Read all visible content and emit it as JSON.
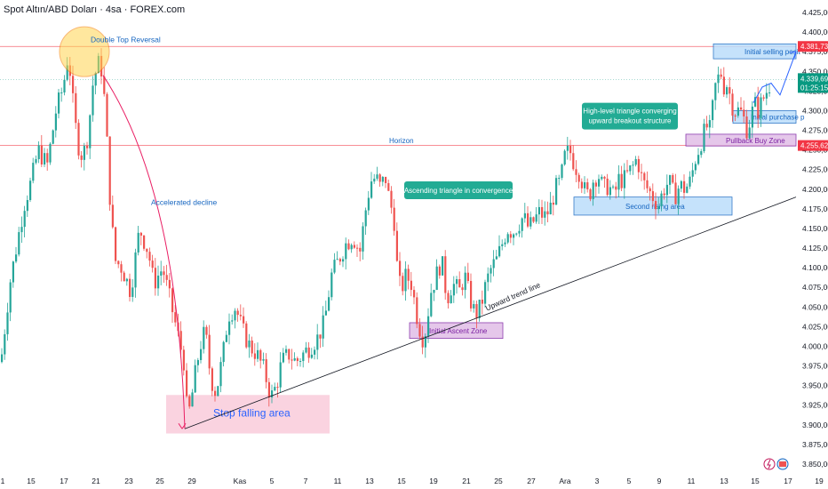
{
  "header": {
    "title": "Spot Altın/ABD Doları · 4sa · FOREX.com"
  },
  "colors": {
    "up": "#26a69a",
    "down": "#ef5350",
    "wick": "#131722",
    "resistance": "#f23645",
    "trend": "#131722",
    "blue_arrow": "#2962ff",
    "label_bg": "#f23645",
    "last_bg": "#089981",
    "callout": "#22ab94"
  },
  "chart_data": {
    "type": "candlestick",
    "title": "Spot Altın/ABD Doları · 4sa · FOREX.com",
    "y_range": [
      3850,
      4425
    ],
    "y_ticks": [
      "4.425,00",
      "4.400,00",
      "4.375,00",
      "4.350,00",
      "4.325,00",
      "4.300,00",
      "4.275,00",
      "4.250,00",
      "4.225,00",
      "4.200,00",
      "4.175,00",
      "4.150,00",
      "4.125,00",
      "4.100,00",
      "4.075,00",
      "4.050,00",
      "4.025,00",
      "4.000,00",
      "3.975,00",
      "3.950,00",
      "3.925,00",
      "3.900,00",
      "3.875,00",
      "3.850,00"
    ],
    "x_ticks": [
      "1",
      "15",
      "17",
      "21",
      "23",
      "25",
      "29",
      "Kas",
      "5",
      "7",
      "11",
      "13",
      "15",
      "19",
      "21",
      "25",
      "27",
      "Ara",
      "3",
      "5",
      "9",
      "11",
      "13",
      "15",
      "17",
      "19"
    ],
    "price_tags": [
      {
        "price": 4381.73,
        "text": "4.381,73",
        "type": "level"
      },
      {
        "price": 4339.69,
        "text": "4.339,69",
        "sub": "01:25:15",
        "type": "last"
      },
      {
        "price": 4255.62,
        "text": "4.255,62",
        "type": "level"
      }
    ],
    "horizontal_lines": [
      {
        "name": "double-top-line",
        "price": 4381.73
      },
      {
        "name": "horizon-line",
        "price": 4255.62
      },
      {
        "name": "last-price-line",
        "price": 4339.69
      }
    ],
    "annotations": {
      "double_top": "Double Top Reversal",
      "accelerated": "Accelerated decline",
      "horizon": "Horizon",
      "asc_triangle": "Ascending triangle in convergence",
      "stop_falling": "Stop falling area",
      "initial_ascent": "Initial Ascent Zone",
      "trend_line": "Upward trend line",
      "second_rising": "Second rising area",
      "high_level": "High-level triangle converging upward breakout structure",
      "pullback": "Pullback Buy Zone",
      "initial_purchase": "Initial purchase p",
      "initial_selling": "Initial selling posit"
    },
    "anchors": [
      [
        0,
        3980
      ],
      [
        4,
        4020
      ],
      [
        10,
        4080
      ],
      [
        18,
        4130
      ],
      [
        26,
        4180
      ],
      [
        34,
        4210
      ],
      [
        42,
        4250
      ],
      [
        52,
        4230
      ],
      [
        62,
        4300
      ],
      [
        70,
        4330
      ],
      [
        76,
        4375
      ],
      [
        80,
        4320
      ],
      [
        86,
        4260
      ],
      [
        92,
        4240
      ],
      [
        98,
        4270
      ],
      [
        104,
        4340
      ],
      [
        110,
        4360
      ],
      [
        114,
        4350
      ],
      [
        118,
        4290
      ],
      [
        122,
        4200
      ],
      [
        128,
        4110
      ],
      [
        136,
        4100
      ],
      [
        146,
        4070
      ],
      [
        156,
        4150
      ],
      [
        166,
        4120
      ],
      [
        172,
        4080
      ],
      [
        182,
        4100
      ],
      [
        192,
        4050
      ],
      [
        200,
        4010
      ],
      [
        206,
        3980
      ],
      [
        210,
        3905
      ],
      [
        214,
        3930
      ],
      [
        218,
        3960
      ],
      [
        224,
        4000
      ],
      [
        230,
        4020
      ],
      [
        236,
        3960
      ],
      [
        242,
        3940
      ],
      [
        250,
        3990
      ],
      [
        256,
        4040
      ],
      [
        264,
        4050
      ],
      [
        272,
        4020
      ],
      [
        280,
        4000
      ],
      [
        288,
        3990
      ],
      [
        296,
        3970
      ],
      [
        304,
        3935
      ],
      [
        310,
        3950
      ],
      [
        316,
        3980
      ],
      [
        324,
        3990
      ],
      [
        332,
        3980
      ],
      [
        340,
        3990
      ],
      [
        348,
        4000
      ],
      [
        356,
        4010
      ],
      [
        364,
        4030
      ],
      [
        372,
        4090
      ],
      [
        380,
        4110
      ],
      [
        388,
        4130
      ],
      [
        396,
        4140
      ],
      [
        404,
        4120
      ],
      [
        410,
        4170
      ],
      [
        416,
        4210
      ],
      [
        422,
        4215
      ],
      [
        428,
        4200
      ],
      [
        432,
        4220
      ],
      [
        438,
        4180
      ],
      [
        442,
        4170
      ],
      [
        446,
        4100
      ],
      [
        450,
        4070
      ],
      [
        456,
        4090
      ],
      [
        462,
        4080
      ],
      [
        468,
        4040
      ],
      [
        474,
        4010
      ],
      [
        478,
        4020
      ],
      [
        484,
        4070
      ],
      [
        490,
        4090
      ],
      [
        496,
        4110
      ],
      [
        502,
        4060
      ],
      [
        508,
        4080
      ],
      [
        516,
        4070
      ],
      [
        522,
        4090
      ],
      [
        528,
        4060
      ],
      [
        534,
        4040
      ],
      [
        540,
        4050
      ],
      [
        546,
        4080
      ],
      [
        552,
        4100
      ],
      [
        558,
        4110
      ],
      [
        564,
        4130
      ],
      [
        570,
        4150
      ],
      [
        576,
        4145
      ],
      [
        582,
        4155
      ],
      [
        588,
        4165
      ],
      [
        594,
        4150
      ],
      [
        600,
        4160
      ],
      [
        606,
        4170
      ],
      [
        612,
        4165
      ],
      [
        618,
        4175
      ],
      [
        624,
        4200
      ],
      [
        630,
        4210
      ],
      [
        634,
        4240
      ],
      [
        640,
        4250
      ],
      [
        646,
        4230
      ],
      [
        652,
        4220
      ],
      [
        656,
        4200
      ],
      [
        662,
        4190
      ],
      [
        666,
        4210
      ],
      [
        672,
        4220
      ],
      [
        678,
        4200
      ],
      [
        684,
        4205
      ],
      [
        690,
        4190
      ],
      [
        696,
        4215
      ],
      [
        700,
        4210
      ],
      [
        706,
        4220
      ],
      [
        712,
        4230
      ],
      [
        716,
        4240
      ],
      [
        722,
        4210
      ],
      [
        728,
        4200
      ],
      [
        734,
        4190
      ],
      [
        740,
        4180
      ],
      [
        746,
        4200
      ],
      [
        752,
        4210
      ],
      [
        758,
        4190
      ],
      [
        764,
        4205
      ],
      [
        770,
        4200
      ],
      [
        776,
        4210
      ],
      [
        782,
        4240
      ],
      [
        788,
        4260
      ],
      [
        794,
        4280
      ],
      [
        798,
        4275
      ],
      [
        804,
        4330
      ],
      [
        810,
        4350
      ],
      [
        814,
        4330
      ],
      [
        818,
        4335
      ],
      [
        822,
        4310
      ],
      [
        826,
        4300
      ],
      [
        832,
        4300
      ],
      [
        836,
        4290
      ],
      [
        840,
        4275
      ],
      [
        844,
        4290
      ],
      [
        848,
        4310
      ],
      [
        852,
        4300
      ],
      [
        858,
        4315
      ],
      [
        864,
        4330
      ],
      [
        868,
        4340
      ]
    ]
  }
}
